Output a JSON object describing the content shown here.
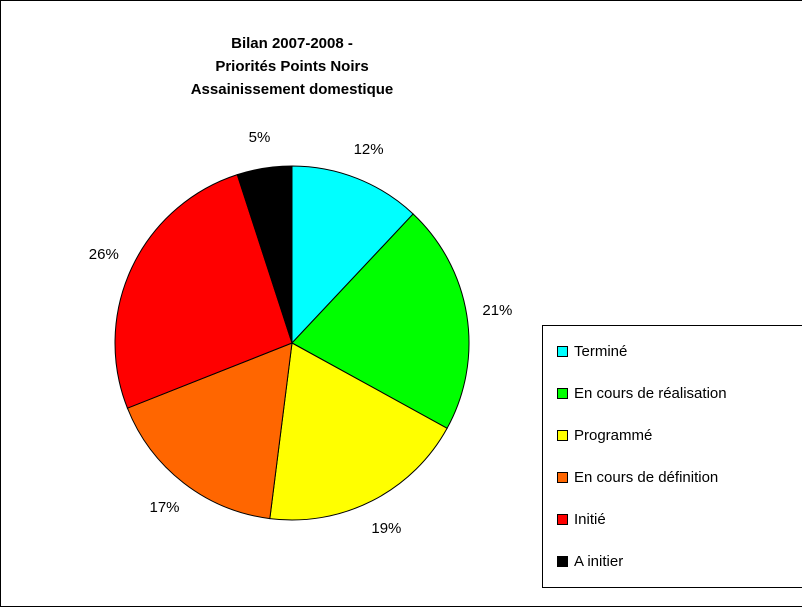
{
  "chart_data": {
    "type": "pie",
    "title_lines": [
      "Bilan 2007-2008 -",
      "Priorités Points Noirs",
      "Assainissement domestique"
    ],
    "categories": [
      "Terminé",
      "En cours de réalisation",
      "Programmé",
      "En cours de définition",
      "Initié",
      "A initier"
    ],
    "values": [
      12,
      21,
      19,
      17,
      26,
      5
    ],
    "value_labels": [
      "12%",
      "21%",
      "19%",
      "17%",
      "26%",
      "5%"
    ],
    "colors": [
      "#00FFFF",
      "#00FF00",
      "#FFFF00",
      "#FF6600",
      "#FF0000",
      "#000000"
    ],
    "legend_position": "right"
  }
}
